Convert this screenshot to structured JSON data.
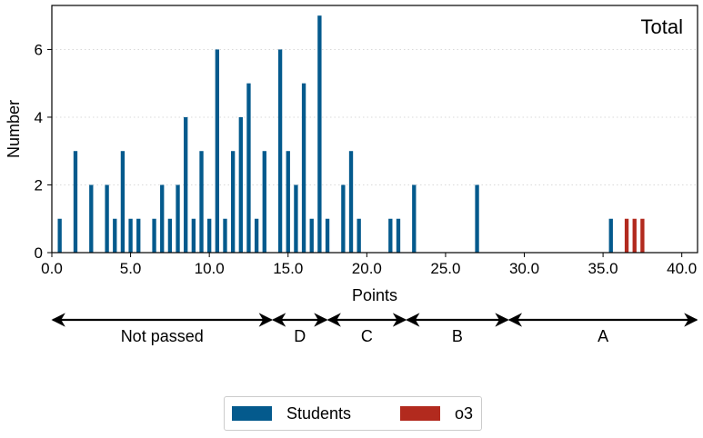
{
  "chart_data": {
    "type": "bar",
    "annotation": "Total",
    "xlabel": "Points",
    "ylabel": "Number",
    "xlim": [
      0,
      41
    ],
    "ylim": [
      0,
      7.3
    ],
    "xticks": [
      "0.0",
      "5.0",
      "10.0",
      "15.0",
      "20.0",
      "25.0",
      "30.0",
      "35.0",
      "40.0"
    ],
    "yticks": [
      "0",
      "2",
      "4",
      "6"
    ],
    "grid": "horizontal-dotted",
    "legend_placement": "bottom-center",
    "series": [
      {
        "name": "Students",
        "color": "#045a8d",
        "x": [
          0.5,
          1.5,
          2.5,
          3.5,
          4.0,
          4.5,
          5.0,
          5.5,
          6.5,
          7.0,
          7.5,
          8.0,
          8.5,
          9.0,
          9.5,
          10.0,
          10.5,
          11.0,
          11.5,
          12.0,
          12.5,
          13.0,
          13.5,
          14.5,
          15.0,
          15.5,
          16.0,
          16.5,
          17.0,
          17.5,
          18.5,
          19.0,
          19.5,
          21.5,
          22.0,
          23.0,
          27.0,
          35.5
        ],
        "values": [
          1,
          3,
          2,
          2,
          1,
          3,
          1,
          1,
          1,
          2,
          1,
          2,
          4,
          1,
          3,
          1,
          6,
          1,
          3,
          4,
          5,
          1,
          3,
          6,
          3,
          2,
          5,
          1,
          7,
          1,
          2,
          3,
          1,
          1,
          1,
          2,
          2,
          1
        ]
      },
      {
        "name": "o3",
        "color": "#b22a1e",
        "x": [
          36.5,
          37.0,
          37.5
        ],
        "values": [
          1,
          1,
          1
        ]
      }
    ],
    "grades": [
      {
        "label": "Not passed",
        "from": 0,
        "to": 14
      },
      {
        "label": "D",
        "from": 14,
        "to": 17.5
      },
      {
        "label": "C",
        "from": 17.5,
        "to": 22.5
      },
      {
        "label": "B",
        "from": 22.5,
        "to": 29
      },
      {
        "label": "A",
        "from": 29,
        "to": 41
      }
    ]
  }
}
